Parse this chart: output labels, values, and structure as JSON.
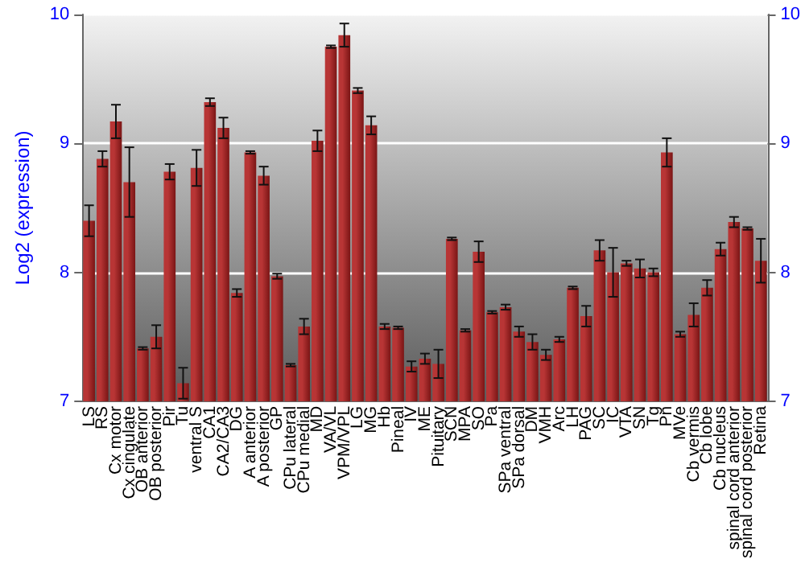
{
  "chart_data": {
    "type": "bar",
    "ylabel": "Log2 (expression)",
    "categories": [
      "LS",
      "RS",
      "Cx motor",
      "Cx cingulate",
      "OB anterior",
      "OB posterior",
      "Pir",
      "Tu",
      "ventral S",
      "CA1",
      "CA2/CA3",
      "DG",
      "A anterior",
      "A posterior",
      "GP",
      "CPu lateral",
      "CPu medial",
      "MD",
      "VA/VL",
      "VPM/VPL",
      "LG",
      "MG",
      "Hb",
      "Pineal",
      "IV",
      "ME",
      "Pituitary",
      "SCN",
      "MPA",
      "SO",
      "Pa",
      "SPa ventral",
      "SPa dorsal",
      "DM",
      "VMH",
      "Arc",
      "LH",
      "PAG",
      "SC",
      "IC",
      "VTA",
      "SN",
      "Tg",
      "Pn",
      "MVe",
      "Cb vermis",
      "Cb lobe",
      "Cb nucleus",
      "spinal cord anterior",
      "spinal cord posterior",
      "Retina"
    ],
    "series": [
      {
        "color": "#b83535",
        "values": [
          8.4,
          8.88,
          9.17,
          8.7,
          7.41,
          7.5,
          8.78,
          7.14,
          8.81,
          9.32,
          9.12,
          7.84,
          8.93,
          8.75,
          7.97,
          7.28,
          7.58,
          9.02,
          9.75,
          9.84,
          9.41,
          9.14,
          7.58,
          7.57,
          7.27,
          7.33,
          7.29,
          8.26,
          7.55,
          8.16,
          7.69,
          7.73,
          7.54,
          7.46,
          7.36,
          7.48,
          7.88,
          7.66,
          8.17,
          8.0,
          8.07,
          8.03,
          8.0,
          8.93,
          7.52,
          7.67,
          7.88,
          8.18,
          8.39,
          8.34,
          8.09
        ],
        "errors": [
          0.12,
          0.06,
          0.13,
          0.27,
          0.01,
          0.09,
          0.06,
          0.12,
          0.14,
          0.03,
          0.08,
          0.03,
          0.01,
          0.07,
          0.02,
          0.01,
          0.06,
          0.08,
          0.01,
          0.09,
          0.02,
          0.07,
          0.02,
          0.01,
          0.04,
          0.04,
          0.11,
          0.01,
          0.01,
          0.08,
          0.01,
          0.02,
          0.04,
          0.06,
          0.04,
          0.02,
          0.01,
          0.08,
          0.08,
          0.19,
          0.02,
          0.07,
          0.03,
          0.11,
          0.02,
          0.09,
          0.06,
          0.05,
          0.04,
          0.01,
          0.17
        ]
      }
    ],
    "ylim": [
      7,
      10
    ],
    "yticks": [
      7,
      8,
      9,
      10
    ],
    "y2lim": [
      7,
      10
    ],
    "y2ticks": [
      7,
      8,
      9,
      10
    ],
    "grid": "y"
  }
}
